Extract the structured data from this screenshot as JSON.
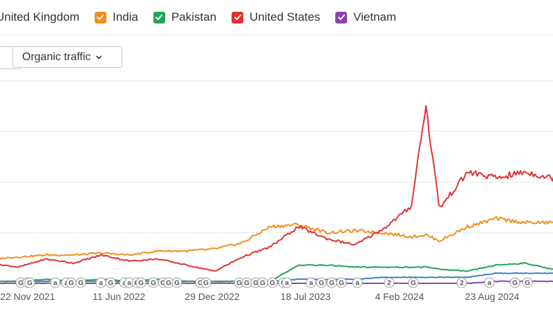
{
  "legend": {
    "items": [
      {
        "label": "United Kingdom",
        "color": "#3b82c4",
        "checked": true
      },
      {
        "label": "India",
        "color": "#f28e1c",
        "checked": true
      },
      {
        "label": "Pakistan",
        "color": "#24a35a",
        "checked": true
      },
      {
        "label": "United States",
        "color": "#e03232",
        "checked": true
      },
      {
        "label": "Vietnam",
        "color": "#8e44ad",
        "checked": true
      }
    ]
  },
  "controls": {
    "metric_select": {
      "label": "Organic traffic",
      "icon": "chevron-down-icon"
    }
  },
  "markers": [
    "G",
    "G",
    "G",
    "a",
    "a",
    "G",
    "G",
    "a",
    "G",
    "a",
    "a",
    "G",
    "G",
    "G",
    "G",
    "G",
    "G",
    "G",
    "G",
    "G",
    "G",
    "G",
    "G",
    "G",
    "G",
    "a",
    "a",
    "G",
    "G",
    "G",
    "a",
    "2",
    "G",
    "2",
    "a",
    "G",
    "G"
  ],
  "chart_data": {
    "type": "line",
    "title": "",
    "xlabel": "",
    "ylabel": "",
    "x_ticks": [
      "22 Nov 2021",
      "11 Jun 2022",
      "29 Dec 2022",
      "18 Jul 2023",
      "4 Feb 2024",
      "23 Aug 2024"
    ],
    "x": [
      "2021-09",
      "2021-11",
      "2022-01",
      "2022-03",
      "2022-05",
      "2022-07",
      "2022-09",
      "2022-11",
      "2023-01",
      "2023-03",
      "2023-05",
      "2023-07",
      "2023-09",
      "2023-11",
      "2024-01",
      "2024-03",
      "2024-04",
      "2024-05",
      "2024-07",
      "2024-09",
      "2024-11",
      "2025-01",
      "2025-02"
    ],
    "ylim": [
      0,
      100
    ],
    "grid": true,
    "legend_position": "top",
    "series": [
      {
        "name": "United States",
        "values": [
          10,
          8,
          12,
          10,
          14,
          11,
          12,
          9,
          6,
          13,
          18,
          28,
          22,
          19,
          27,
          38,
          88,
          37,
          55,
          52,
          55,
          52,
          72
        ]
      },
      {
        "name": "India",
        "values": [
          12,
          13,
          14,
          14,
          15,
          14,
          16,
          16,
          17,
          20,
          28,
          29,
          25,
          26,
          25,
          23,
          24,
          21,
          28,
          32,
          30,
          30,
          31
        ]
      },
      {
        "name": "Pakistan",
        "values": [
          1,
          1,
          2,
          1,
          2,
          1,
          2,
          1,
          1,
          1,
          1,
          9,
          9,
          8,
          8,
          8,
          8,
          7,
          6,
          9,
          10,
          7,
          7
        ]
      },
      {
        "name": "United Kingdom",
        "values": [
          1,
          1,
          1,
          1,
          1,
          1,
          1,
          1,
          1,
          1,
          1,
          2,
          2,
          2,
          3,
          3,
          3,
          3,
          3,
          5,
          5,
          5,
          6
        ]
      },
      {
        "name": "Vietnam",
        "values": [
          0,
          0,
          0,
          0,
          0,
          0,
          0,
          0,
          0,
          0,
          0,
          0,
          0,
          0,
          0,
          0,
          0,
          0,
          0,
          1,
          1,
          1,
          1
        ]
      }
    ]
  }
}
